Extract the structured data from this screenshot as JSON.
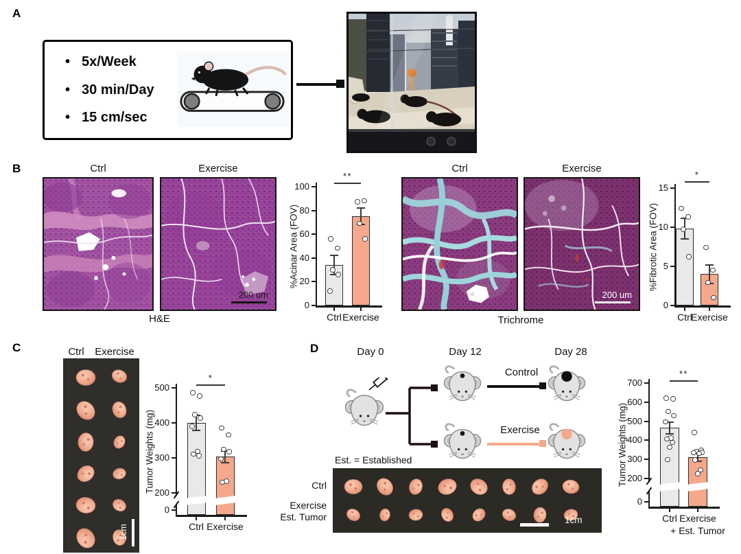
{
  "figure": {
    "panel_a": {
      "label": "A",
      "protocol_bullets": [
        "5x/Week",
        "30 min/Day",
        "15 cm/sec"
      ]
    },
    "panel_b": {
      "label": "B",
      "hne": {
        "ctrl": "Ctrl",
        "exercise": "Exercise",
        "stain": "H&E",
        "scale_bar": "200 um"
      },
      "trichrome": {
        "ctrl": "Ctrl",
        "exercise": "Exercise",
        "stain": "Trichrome",
        "scale_bar": "200 um"
      }
    },
    "panel_c": {
      "label": "C",
      "ctrl": "Ctrl",
      "exercise": "Exercise",
      "scale_bar": "1cm"
    },
    "panel_d": {
      "label": "D",
      "day0": "Day 0",
      "day12": "Day 12",
      "day28": "Day 28",
      "control_arm": "Control",
      "exercise_arm": "Exercise",
      "est_note": "Est. = Established",
      "row_ctrl": "Ctrl",
      "row_exercise_line1": "Exercise",
      "row_exercise_line2": "Est. Tumor",
      "scale_bar": "1cm"
    }
  },
  "colors": {
    "exercise_accent": "#f5a88b",
    "control_bar": "#e9e9e9",
    "bar_border": "#2b2b2b",
    "axis": "#1a1a1a"
  },
  "chart_data": [
    {
      "id": "acinar",
      "type": "bar",
      "ylabel": "%Acinar Area (FOV)",
      "ylim": [
        0,
        100
      ],
      "yticks": [
        0,
        20,
        40,
        60,
        80,
        100
      ],
      "broken_axis": false,
      "significance": "**",
      "categories": [
        "Ctrl",
        "Exercise"
      ],
      "values": [
        34,
        75
      ],
      "errors": [
        8,
        7
      ],
      "points": [
        [
          56,
          48,
          30,
          26,
          12
        ],
        [
          87,
          88,
          69,
          56
        ]
      ],
      "bar_colors": [
        "#e9e9e9",
        "#f5a88b"
      ]
    },
    {
      "id": "fibrotic",
      "type": "bar",
      "ylabel": "%Fibrotic Area (FOV)",
      "ylim": [
        0,
        15
      ],
      "yticks": [
        0,
        5,
        10,
        15
      ],
      "broken_axis": false,
      "significance": "*",
      "categories": [
        "Ctrl",
        "Exercise"
      ],
      "values": [
        9.8,
        4.0
      ],
      "errors": [
        1.3,
        1.2
      ],
      "points": [
        [
          12.4,
          11.3,
          9.7,
          6.2
        ],
        [
          7.4,
          4.5,
          2.9,
          1.0
        ]
      ],
      "bar_colors": [
        "#e9e9e9",
        "#f5a88b"
      ]
    },
    {
      "id": "tumorC",
      "type": "bar",
      "ylabel": "Tumor Weights (mg)",
      "ylim": [
        200,
        500
      ],
      "yticks": [
        200,
        300,
        400,
        500
      ],
      "broken_axis": true,
      "zero_label": "0",
      "significance": "*",
      "categories": [
        "Ctrl",
        "Exercise"
      ],
      "values": [
        400,
        303
      ],
      "errors": [
        22,
        16
      ],
      "points": [
        [
          486,
          476,
          423,
          413,
          390,
          318,
          310,
          305
        ],
        [
          385,
          365,
          324,
          317,
          297,
          233,
          230
        ]
      ],
      "bar_colors": [
        "#e9e9e9",
        "#f5a88b"
      ]
    },
    {
      "id": "tumorD",
      "type": "bar",
      "ylabel": "Tumor Weights (mg)",
      "ylim": [
        200,
        700
      ],
      "yticks": [
        200,
        300,
        400,
        500,
        600,
        700
      ],
      "broken_axis": true,
      "zero_label": "0",
      "significance": "**",
      "categories": [
        "Ctrl",
        "Exercise"
      ],
      "category_note": "+ Est. Tumor",
      "values": [
        465,
        310
      ],
      "errors": [
        30,
        20
      ],
      "points": [
        [
          620,
          616,
          549,
          528,
          495,
          412,
          406,
          388,
          362,
          298
        ],
        [
          440,
          348,
          342,
          336,
          334,
          330,
          296,
          244,
          225
        ]
      ],
      "bar_colors": [
        "#e9e9e9",
        "#f5a88b"
      ]
    }
  ]
}
